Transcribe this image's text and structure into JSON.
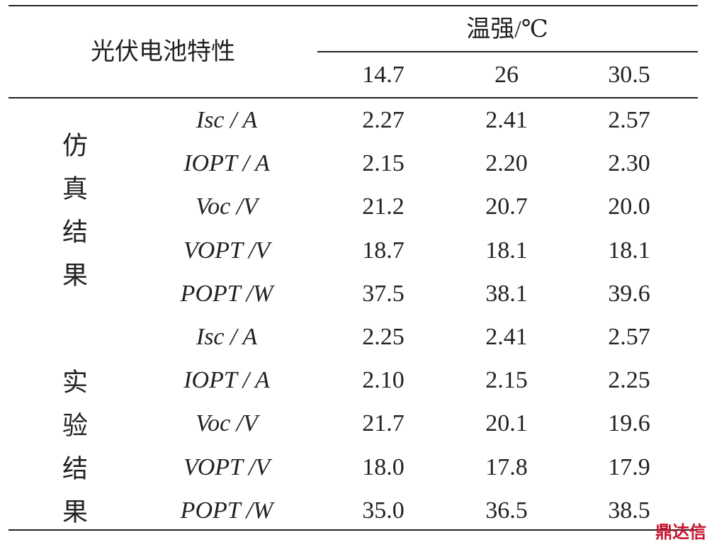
{
  "table": {
    "header": {
      "row_label": "光伏电池特性",
      "group_label": "温强/℃",
      "columns": [
        "14.7",
        "26",
        "30.5"
      ]
    },
    "groups": [
      {
        "label": "仿真结果",
        "rows": [
          {
            "param": "Isc / A",
            "values": [
              "2.27",
              "2.41",
              "2.57"
            ]
          },
          {
            "param": "IOPT / A",
            "values": [
              "2.15",
              "2.20",
              "2.30"
            ]
          },
          {
            "param": "Voc /V",
            "values": [
              "21.2",
              "20.7",
              "20.0"
            ]
          },
          {
            "param": "VOPT /V",
            "values": [
              "18.7",
              "18.1",
              "18.1"
            ]
          },
          {
            "param": "POPT /W",
            "values": [
              "37.5",
              "38.1",
              "39.6"
            ]
          }
        ]
      },
      {
        "label": "实验结果",
        "rows": [
          {
            "param": "Isc / A",
            "values": [
              "2.25",
              "2.41",
              "2.57"
            ]
          },
          {
            "param": "IOPT / A",
            "values": [
              "2.10",
              "2.15",
              "2.25"
            ]
          },
          {
            "param": "Voc /V",
            "values": [
              "21.7",
              "20.1",
              "19.6"
            ]
          },
          {
            "param": "VOPT /V",
            "values": [
              "18.0",
              "17.8",
              "17.9"
            ]
          },
          {
            "param": "POPT /W",
            "values": [
              "35.0",
              "36.5",
              "38.5"
            ]
          }
        ]
      }
    ]
  },
  "watermark": "鼎达信"
}
